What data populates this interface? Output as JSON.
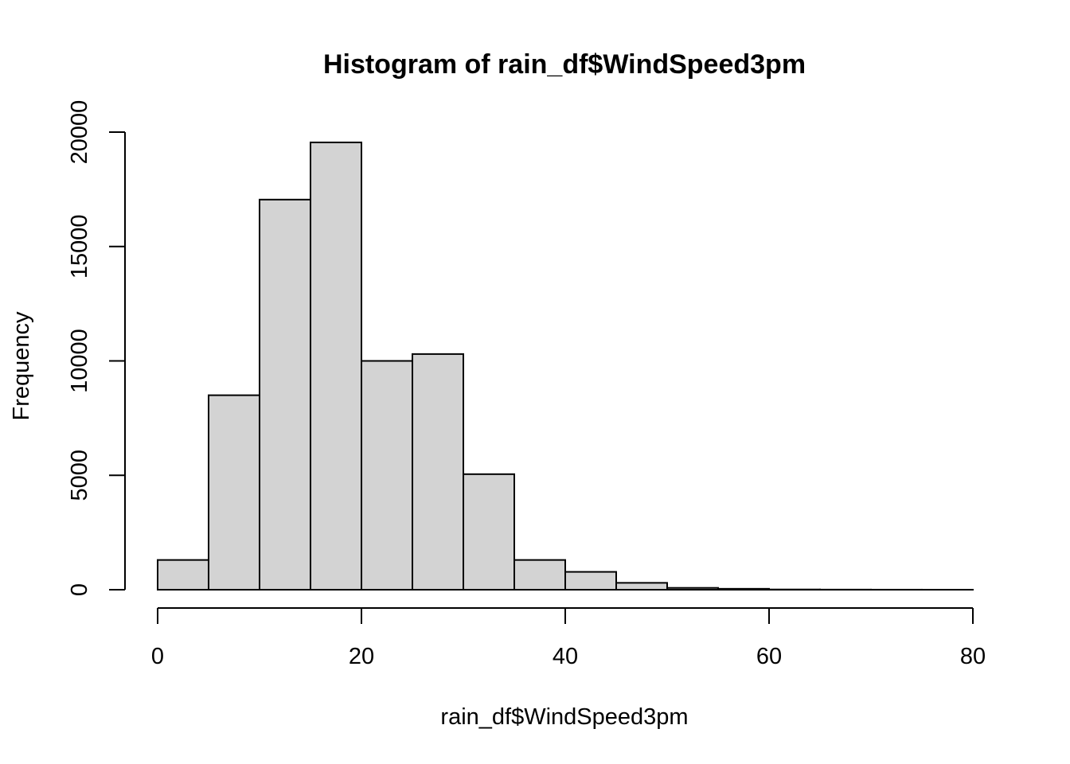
{
  "chart_data": {
    "type": "bar",
    "title": "Histogram of rain_df$WindSpeed3pm",
    "xlabel": "rain_df$WindSpeed3pm",
    "ylabel": "Frequency",
    "bins": [
      {
        "start": 0,
        "end": 5,
        "count": 1300
      },
      {
        "start": 5,
        "end": 10,
        "count": 8500
      },
      {
        "start": 10,
        "end": 15,
        "count": 17050
      },
      {
        "start": 15,
        "end": 20,
        "count": 19550
      },
      {
        "start": 20,
        "end": 25,
        "count": 10000
      },
      {
        "start": 25,
        "end": 30,
        "count": 10300
      },
      {
        "start": 30,
        "end": 35,
        "count": 5050
      },
      {
        "start": 35,
        "end": 40,
        "count": 1300
      },
      {
        "start": 40,
        "end": 45,
        "count": 780
      },
      {
        "start": 45,
        "end": 50,
        "count": 300
      },
      {
        "start": 50,
        "end": 55,
        "count": 80
      },
      {
        "start": 55,
        "end": 60,
        "count": 40
      },
      {
        "start": 60,
        "end": 65,
        "count": 10
      },
      {
        "start": 65,
        "end": 70,
        "count": 5
      },
      {
        "start": 70,
        "end": 75,
        "count": 2
      },
      {
        "start": 75,
        "end": 80,
        "count": 1
      }
    ],
    "xlim": [
      0,
      80
    ],
    "ylim": [
      0,
      20000
    ],
    "xticks": [
      0,
      20,
      40,
      60,
      80
    ],
    "yticks": [
      0,
      5000,
      10000,
      15000,
      20000
    ],
    "bar_color": "#d3d3d3",
    "grid": false
  }
}
